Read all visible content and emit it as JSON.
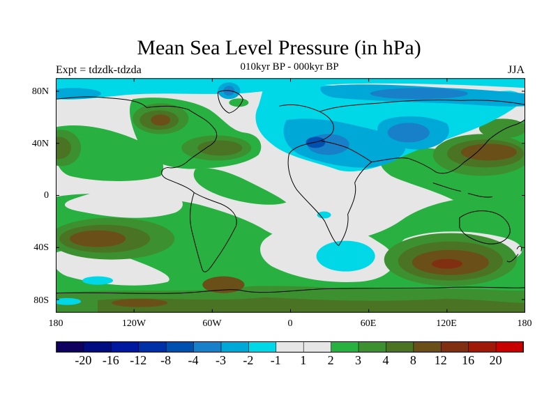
{
  "header": {
    "title": "Mean Sea Level Pressure (in hPa)",
    "experiment": "Expt = tdzdk-tdzda",
    "period": "010kyr BP - 000kyr BP",
    "season": "JJA"
  },
  "axes": {
    "lat_labels": [
      "80N",
      "40N",
      "0",
      "40S",
      "80S"
    ],
    "lon_labels": [
      "180",
      "120W",
      "60W",
      "0",
      "60E",
      "120E",
      "180"
    ]
  },
  "colorbar": {
    "labels": [
      "-20",
      "-16",
      "-12",
      "-8",
      "-4",
      "-3",
      "-2",
      "-1",
      "1",
      "2",
      "3",
      "4",
      "8",
      "12",
      "16",
      "20"
    ],
    "colors": [
      "#100060",
      "#000c80",
      "#0018a0",
      "#0030a8",
      "#0050b0",
      "#1880c8",
      "#00a8d8",
      "#00d8e8",
      "#e6e6e6",
      "#28b040",
      "#3c9030",
      "#4a7424",
      "#6a5018",
      "#803010",
      "#a01808",
      "#c80000"
    ]
  },
  "colors": {
    "background": "#ffffff",
    "neutral": "#e6e6e6",
    "coast": "#000000"
  }
}
